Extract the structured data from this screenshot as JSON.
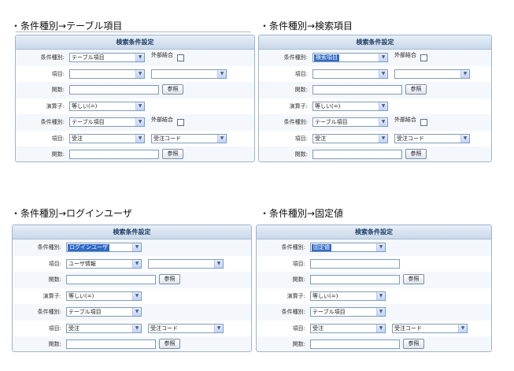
{
  "captions": {
    "p1": "・条件種別→テーブル項目",
    "p2": "・条件種別→検索項目",
    "p3": "・条件種別→ログインユーザ",
    "p4": "・条件種別→固定値"
  },
  "labels": {
    "panel_title": "検索条件設定",
    "condition_type": "条件種別:",
    "item": "項目:",
    "relation": "関数:",
    "operator": "演算子:",
    "external_join": "外部結合",
    "browse_button": "参照"
  },
  "values": {
    "table_item": "テーブル項目",
    "search_item": "検索項目",
    "login_user": "ログインユーザ",
    "fixed_value": "固定値",
    "user_info": "ユーザ情報",
    "equal": "等しい(=)",
    "order": "受注",
    "order_code": "受注コード"
  },
  "colors": {
    "panel_border": "#9fb4cc",
    "header_text": "#1d3c63",
    "highlight": "#316ac5"
  }
}
